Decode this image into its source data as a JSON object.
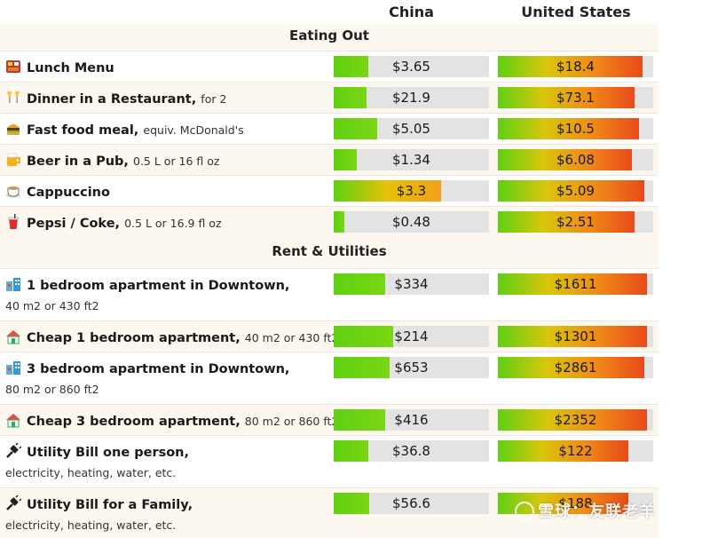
{
  "columns": {
    "china": "China",
    "us": "United States"
  },
  "sections": {
    "eating_out": "Eating Out",
    "rent_utilities": "Rent & Utilities"
  },
  "rows": [
    {
      "label": "Lunch Menu",
      "sub": "",
      "sub2": "",
      "icon": "bento-icon",
      "china": {
        "value": "$3.65",
        "level": 0.22
      },
      "us": {
        "value": "$18.4",
        "level": 0.93
      }
    },
    {
      "label": "Dinner in a Restaurant,",
      "sub": "for 2",
      "sub2": "",
      "icon": "cheers-icon",
      "china": {
        "value": "$21.9",
        "level": 0.21
      },
      "us": {
        "value": "$73.1",
        "level": 0.88
      }
    },
    {
      "label": "Fast food meal,",
      "sub": "equiv. McDonald's",
      "sub2": "",
      "icon": "burger-icon",
      "china": {
        "value": "$5.05",
        "level": 0.28
      },
      "us": {
        "value": "$10.5",
        "level": 0.91
      }
    },
    {
      "label": "Beer in a Pub,",
      "sub": "0.5 L or 16 fl oz",
      "sub2": "",
      "icon": "beer-icon",
      "china": {
        "value": "$1.34",
        "level": 0.15
      },
      "us": {
        "value": "$6.08",
        "level": 0.86
      }
    },
    {
      "label": "Cappuccino",
      "sub": "",
      "sub2": "",
      "icon": "coffee-icon",
      "china": {
        "value": "$3.3",
        "level": 0.69
      },
      "us": {
        "value": "$5.09",
        "level": 0.94
      }
    },
    {
      "label": "Pepsi / Coke,",
      "sub": "0.5 L or 16.9 fl oz",
      "sub2": "",
      "icon": "soda-icon",
      "china": {
        "value": "$0.48",
        "level": 0.07
      },
      "us": {
        "value": "$2.51",
        "level": 0.88
      }
    },
    {
      "label": "1 bedroom apartment in Downtown,",
      "sub": "",
      "sub2": "40 m2 or 430 ft2",
      "icon": "city-apartment-icon",
      "china": {
        "value": "$334",
        "level": 0.33
      },
      "us": {
        "value": "$1611",
        "level": 0.96
      }
    },
    {
      "label": "Cheap 1 bedroom apartment,",
      "sub": "40 m2 or 430 ft2",
      "sub2": "",
      "icon": "house-icon",
      "china": {
        "value": "$214",
        "level": 0.38
      },
      "us": {
        "value": "$1301",
        "level": 0.96
      }
    },
    {
      "label": "3 bedroom apartment in Downtown,",
      "sub": "",
      "sub2": "80 m2 or 860 ft2",
      "icon": "city-apartment-icon",
      "china": {
        "value": "$653",
        "level": 0.36
      },
      "us": {
        "value": "$2861",
        "level": 0.94
      }
    },
    {
      "label": "Cheap 3 bedroom apartment,",
      "sub": "80 m2 or 860 ft2",
      "sub2": "",
      "icon": "house-icon",
      "china": {
        "value": "$416",
        "level": 0.33
      },
      "us": {
        "value": "$2352",
        "level": 0.96
      }
    },
    {
      "label": "Utility Bill one person,",
      "sub": "",
      "sub2": "electricity, heating, water, etc.",
      "icon": "plug-icon",
      "china": {
        "value": "$36.8",
        "level": 0.22
      },
      "us": {
        "value": "$122",
        "level": 0.84
      }
    },
    {
      "label": "Utility Bill for a Family,",
      "sub": "",
      "sub2": "electricity, heating, water, etc.",
      "icon": "plug-icon",
      "china": {
        "value": "$56.6",
        "level": 0.23
      },
      "us": {
        "value": "$188",
        "level": 0.84
      }
    }
  ],
  "watermark": "雪球：友联老羊",
  "colors": {
    "bar_bg": "#e3e3e3",
    "green": "#5fd013",
    "yellow": "#e6c20a",
    "orange": "#f08a18",
    "red": "#e84a1a",
    "row_alt": "#fcf8f0"
  }
}
